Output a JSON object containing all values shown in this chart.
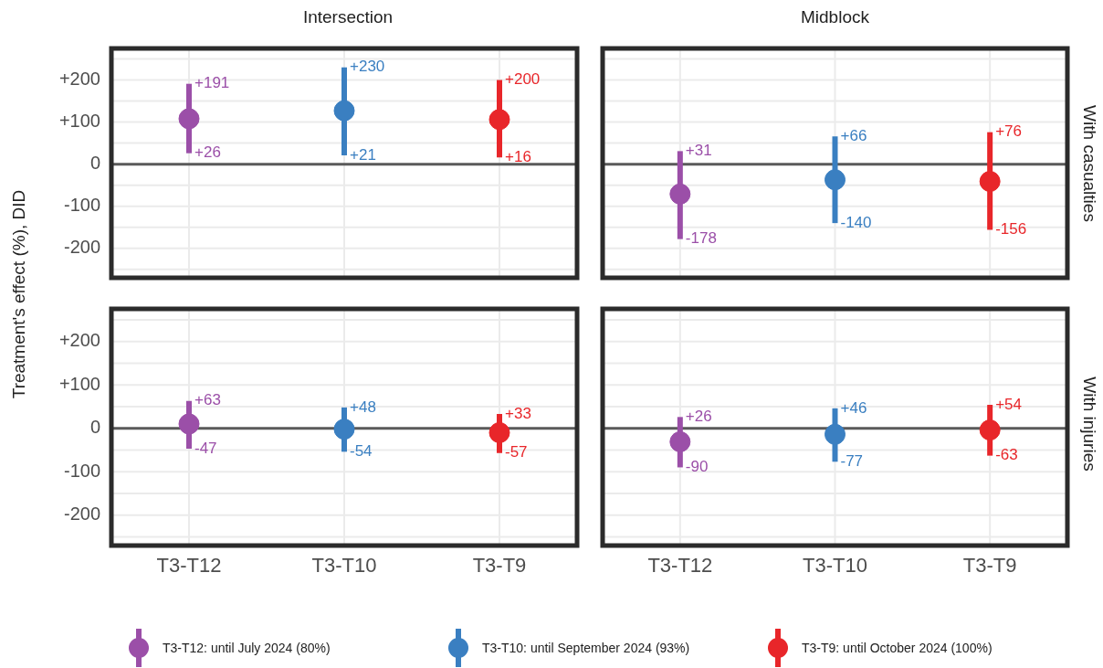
{
  "chart_data": [
    {
      "type": "scatter",
      "title": "Intersection",
      "ylabel": "Treatment's effect (%), DID",
      "tick_labels": "y",
      "categories": [
        "T3-T12",
        "T3-T10",
        "T3-T9"
      ],
      "ylim": [
        -270,
        275
      ],
      "yticks": [
        {
          "value": -250,
          "label": null
        },
        {
          "value": -200,
          "label": "-200"
        },
        {
          "value": -150,
          "label": null
        },
        {
          "value": -100,
          "label": "-100"
        },
        {
          "value": -50,
          "label": null
        },
        0,
        {
          "value": 50,
          "label": null
        },
        {
          "value": 100,
          "label": "+100"
        },
        {
          "value": 150,
          "label": null
        },
        {
          "value": 200,
          "label": "+200"
        },
        {
          "value": 250,
          "label": null
        }
      ],
      "grid": true,
      "marker": "circle",
      "legend": "bottom",
      "ref_lines": [
        {
          "axis": "y",
          "value": 0,
          "color": "#5a5a5a"
        }
      ],
      "series": [
        {
          "name": "T3-T12: until July 2024 (80%)",
          "color": "#9b4fa8",
          "values": [
            108,
            null,
            null
          ],
          "errors": [
            [
              26,
              191
            ],
            null,
            null
          ]
        },
        {
          "name": "T3-T10: until September 2024 (93%)",
          "color": "#3a7fc1",
          "values": [
            null,
            127,
            null
          ],
          "errors": [
            null,
            [
              21,
              230
            ],
            null
          ]
        },
        {
          "name": "T3-T9: until October 2024 (100%)",
          "color": "#e8262a",
          "values": [
            null,
            null,
            106
          ],
          "errors": [
            null,
            null,
            [
              16,
              200
            ]
          ]
        }
      ],
      "annotations": [
        {
          "text": "+191",
          "x": "T3-T12",
          "y": 191
        },
        {
          "text": "+26",
          "x": "T3-T12",
          "y": 26
        },
        {
          "text": "+230",
          "x": "T3-T10",
          "y": 230
        },
        {
          "text": "+21",
          "x": "T3-T10",
          "y": 21
        },
        {
          "text": "+200",
          "x": "T3-T9",
          "y": 200
        },
        {
          "text": "+16",
          "x": "T3-T9",
          "y": 16
        }
      ]
    },
    {
      "type": "scatter",
      "title": "Midblock",
      "y2label": "With casualties",
      "tick_labels": false,
      "categories": [
        "T3-T12",
        "T3-T10",
        "T3-T9"
      ],
      "ylim": [
        -270,
        275
      ],
      "yticks": [
        {
          "value": -250,
          "label": null
        },
        {
          "value": -200,
          "label": null
        },
        {
          "value": -150,
          "label": null
        },
        {
          "value": -100,
          "label": null
        },
        {
          "value": -50,
          "label": null
        },
        {
          "value": 0,
          "label": null
        },
        {
          "value": 50,
          "label": null
        },
        {
          "value": 100,
          "label": null
        },
        {
          "value": 150,
          "label": null
        },
        {
          "value": 200,
          "label": null
        },
        {
          "value": 250,
          "label": null
        }
      ],
      "grid": true,
      "marker": "circle",
      "ref_lines": [
        {
          "axis": "y",
          "value": 0,
          "color": "#5a5a5a"
        }
      ],
      "series": [
        {
          "color": "#9b4fa8",
          "values": [
            -71,
            null,
            null
          ],
          "errors": [
            [
              -178,
              31
            ],
            null,
            null
          ]
        },
        {
          "color": "#3a7fc1",
          "values": [
            null,
            -37,
            null
          ],
          "errors": [
            null,
            [
              -140,
              66
            ],
            null
          ]
        },
        {
          "color": "#e8262a",
          "values": [
            null,
            null,
            -41
          ],
          "errors": [
            null,
            null,
            [
              -156,
              76
            ]
          ]
        }
      ],
      "annotations": [
        {
          "text": "+31",
          "x": "T3-T12",
          "y": 31
        },
        {
          "text": "-178",
          "x": "T3-T12",
          "y": -178
        },
        {
          "text": "+66",
          "x": "T3-T10",
          "y": 66
        },
        {
          "text": "-140",
          "x": "T3-T10",
          "y": -140
        },
        {
          "text": "+76",
          "x": "T3-T9",
          "y": 76
        },
        {
          "text": "-156",
          "x": "T3-T9",
          "y": -156
        }
      ]
    },
    {
      "type": "scatter",
      "categories": [
        "T3-T12",
        "T3-T10",
        "T3-T9"
      ],
      "ylim": [
        -270,
        275
      ],
      "yticks": [
        {
          "value": -250,
          "label": null
        },
        {
          "value": -200,
          "label": "-200"
        },
        {
          "value": -150,
          "label": null
        },
        {
          "value": -100,
          "label": "-100"
        },
        {
          "value": -50,
          "label": null
        },
        0,
        {
          "value": 50,
          "label": null
        },
        {
          "value": 100,
          "label": "+100"
        },
        {
          "value": 150,
          "label": null
        },
        {
          "value": 200,
          "label": "+200"
        },
        {
          "value": 250,
          "label": null
        }
      ],
      "grid": true,
      "marker": "circle",
      "ref_lines": [
        {
          "axis": "y",
          "value": 0,
          "color": "#5a5a5a"
        }
      ],
      "series": [
        {
          "color": "#9b4fa8",
          "values": [
            10,
            null,
            null
          ],
          "errors": [
            [
              -47,
              63
            ],
            null,
            null
          ]
        },
        {
          "color": "#3a7fc1",
          "values": [
            null,
            -2,
            null
          ],
          "errors": [
            null,
            [
              -54,
              48
            ],
            null
          ]
        },
        {
          "color": "#e8262a",
          "values": [
            null,
            null,
            -10
          ],
          "errors": [
            null,
            null,
            [
              -57,
              33
            ]
          ]
        }
      ],
      "annotations": [
        {
          "text": "+63",
          "x": "T3-T12",
          "y": 63
        },
        {
          "text": "-47",
          "x": "T3-T12",
          "y": -47
        },
        {
          "text": "+48",
          "x": "T3-T10",
          "y": 48
        },
        {
          "text": "-54",
          "x": "T3-T10",
          "y": -54
        },
        {
          "text": "+33",
          "x": "T3-T9",
          "y": 33
        },
        {
          "text": "-57",
          "x": "T3-T9",
          "y": -57
        }
      ]
    },
    {
      "type": "scatter",
      "y2label": "With injuries",
      "tick_labels": "x",
      "categories": [
        "T3-T12",
        "T3-T10",
        "T3-T9"
      ],
      "ylim": [
        -270,
        275
      ],
      "yticks": [
        {
          "value": -250,
          "label": null
        },
        {
          "value": -200,
          "label": null
        },
        {
          "value": -150,
          "label": null
        },
        {
          "value": -100,
          "label": null
        },
        {
          "value": -50,
          "label": null
        },
        {
          "value": 0,
          "label": null
        },
        {
          "value": 50,
          "label": null
        },
        {
          "value": 100,
          "label": null
        },
        {
          "value": 150,
          "label": null
        },
        {
          "value": 200,
          "label": null
        },
        {
          "value": 250,
          "label": null
        }
      ],
      "grid": true,
      "marker": "circle",
      "ref_lines": [
        {
          "axis": "y",
          "value": 0,
          "color": "#5a5a5a"
        }
      ],
      "series": [
        {
          "color": "#9b4fa8",
          "values": [
            -31,
            null,
            null
          ],
          "errors": [
            [
              -90,
              26
            ],
            null,
            null
          ]
        },
        {
          "color": "#3a7fc1",
          "values": [
            null,
            -14,
            null
          ],
          "errors": [
            null,
            [
              -77,
              46
            ],
            null
          ]
        },
        {
          "color": "#e8262a",
          "values": [
            null,
            null,
            -4
          ],
          "errors": [
            null,
            null,
            [
              -63,
              54
            ]
          ]
        }
      ],
      "annotations": [
        {
          "text": "+26",
          "x": "T3-T12",
          "y": 26
        },
        {
          "text": "-90",
          "x": "T3-T12",
          "y": -90
        },
        {
          "text": "+46",
          "x": "T3-T10",
          "y": 46
        },
        {
          "text": "-77",
          "x": "T3-T10",
          "y": -77
        },
        {
          "text": "+54",
          "x": "T3-T9",
          "y": 54
        },
        {
          "text": "-63",
          "x": "T3-T9",
          "y": -63
        }
      ]
    }
  ]
}
